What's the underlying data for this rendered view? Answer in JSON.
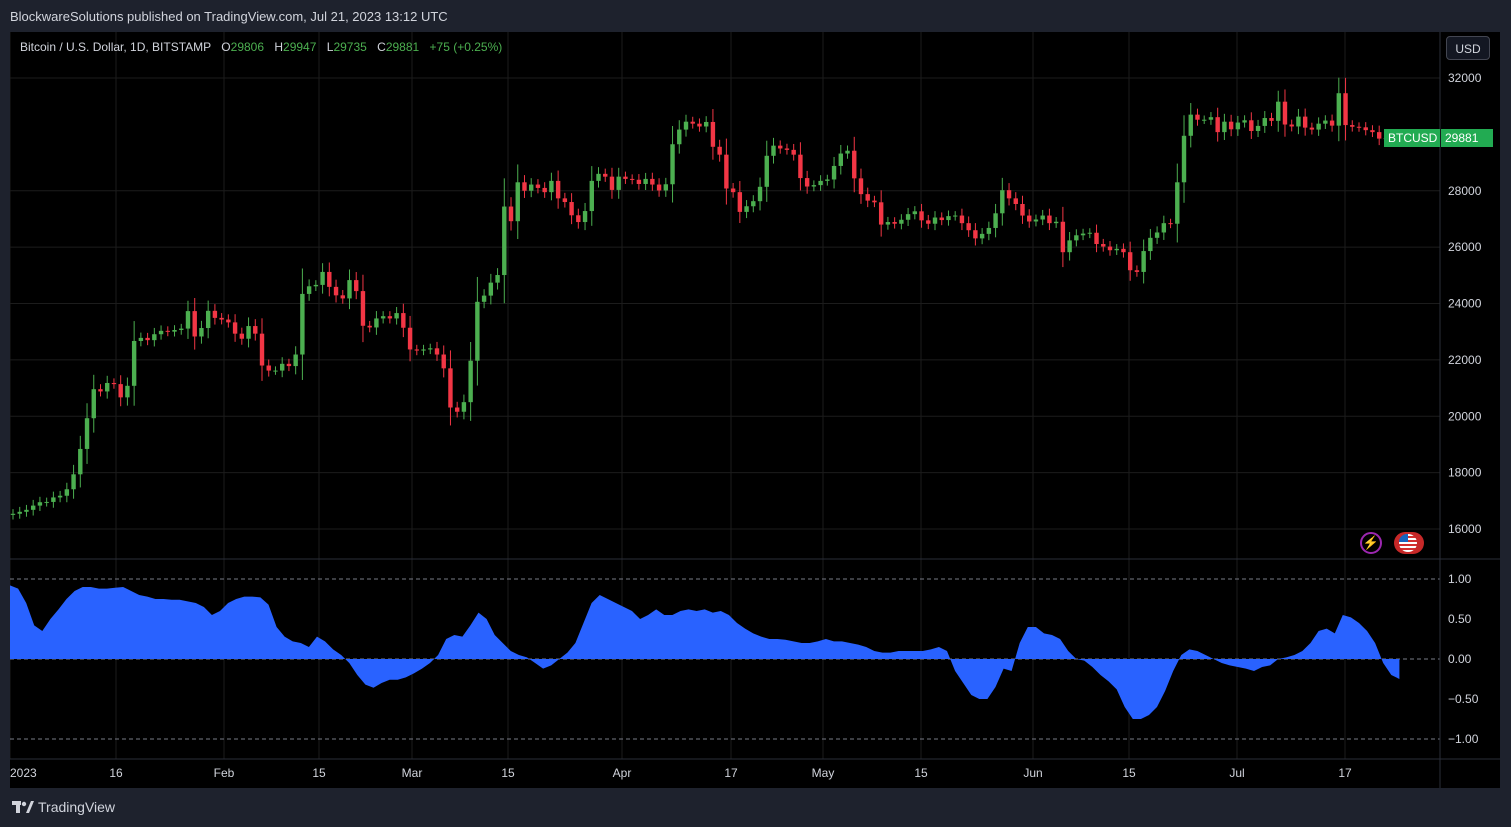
{
  "header": {
    "publisher_line": "BlockwareSolutions published on TradingView.com, Jul 21, 2023 13:12 UTC"
  },
  "legend": {
    "symbol": "Bitcoin / U.S. Dollar, 1D, BITSTAMP",
    "open_label": "O",
    "open": "29806",
    "high_label": "H",
    "high": "29947",
    "low_label": "L",
    "low": "29735",
    "close_label": "C",
    "close": "29881",
    "change": "+75 (+0.25%)"
  },
  "currency_button": "USD",
  "price_tag": {
    "symbol": "BTCUSD",
    "value": "29881"
  },
  "footer": {
    "brand": "TradingView"
  },
  "colors": {
    "up": "#4caf50",
    "down": "#f23645",
    "oscillator": "#2962ff",
    "background": "#000000",
    "frame": "#1e222d"
  },
  "icons": [
    "lightning-icon",
    "us-flag-icon",
    "tradingview-logo-icon"
  ],
  "chart_data": [
    {
      "type": "candlestick",
      "symbol": "BTCUSD",
      "interval": "1D",
      "x_start": "2023-01-01",
      "y_axis_ticks": [
        16000,
        18000,
        20000,
        22000,
        24000,
        26000,
        28000,
        32000
      ],
      "x_axis_ticks": [
        "2023",
        "16",
        "Feb",
        "15",
        "Mar",
        "15",
        "Apr",
        "17",
        "May",
        "15",
        "Jun",
        "15",
        "Jul",
        "17"
      ],
      "closes": [
        16540,
        16610,
        16680,
        16830,
        16950,
        16960,
        17120,
        17180,
        17410,
        17940,
        18840,
        19930,
        20960,
        20880,
        21180,
        21140,
        20670,
        21080,
        22670,
        22780,
        22700,
        22910,
        23030,
        23000,
        23060,
        23110,
        23730,
        22830,
        23130,
        23740,
        23490,
        23430,
        23330,
        22930,
        22750,
        23200,
        22930,
        21800,
        21620,
        21620,
        21860,
        21780,
        22190,
        24340,
        24610,
        24660,
        25120,
        24590,
        24290,
        24180,
        24830,
        24440,
        23210,
        23150,
        23470,
        23550,
        23470,
        23660,
        23140,
        22370,
        22330,
        22370,
        22410,
        22190,
        21700,
        20310,
        20160,
        20500,
        21970,
        24060,
        24280,
        24740,
        25010,
        27440,
        26920,
        28300,
        28000,
        28220,
        28100,
        27950,
        28350,
        27730,
        27600,
        27130,
        26890,
        27280,
        28350,
        28600,
        28500,
        28030,
        28500,
        28420,
        28390,
        28240,
        28420,
        28220,
        28010,
        28230,
        29650,
        30170,
        30450,
        30380,
        30280,
        30440,
        29560,
        29280,
        28080,
        27950,
        27250,
        27450,
        27630,
        28140,
        29240,
        29600,
        29500,
        29450,
        29280,
        28450,
        28150,
        28200,
        28350,
        28400,
        28880,
        29320,
        29420,
        28440,
        27880,
        27650,
        27590,
        26800,
        26890,
        26830,
        26970,
        27170,
        27270,
        26950,
        26830,
        27050,
        26960,
        27100,
        27120,
        26850,
        26600,
        26310,
        26470,
        26680,
        27200,
        28020,
        27730,
        27530,
        27120,
        26910,
        26980,
        27120,
        26850,
        26900,
        25820,
        26240,
        26420,
        26480,
        26510,
        26110,
        26020,
        25890,
        25940,
        25820,
        25180,
        25120,
        25860,
        26330,
        26520,
        26850,
        26830,
        28300,
        29950,
        30700,
        30520,
        30520,
        30610,
        30080,
        30450,
        30180,
        30420,
        30500,
        30120,
        30300,
        30580,
        30480,
        31160,
        30350,
        30280,
        30630,
        30240,
        30170,
        30380,
        30490,
        30310,
        31460,
        30330,
        30270,
        30250,
        30150,
        30080,
        29850,
        29870,
        29810,
        29881
      ]
    },
    {
      "type": "area",
      "name": "oscillator",
      "ylim": [
        -1.0,
        1.0
      ],
      "y_axis_ticks": [
        1.0,
        0.5,
        0.0,
        -0.5,
        -1.0
      ],
      "values": [
        0.92,
        0.88,
        0.7,
        0.42,
        0.35,
        0.5,
        0.62,
        0.75,
        0.85,
        0.9,
        0.9,
        0.88,
        0.88,
        0.89,
        0.9,
        0.85,
        0.8,
        0.78,
        0.75,
        0.75,
        0.74,
        0.74,
        0.72,
        0.7,
        0.65,
        0.55,
        0.6,
        0.7,
        0.75,
        0.78,
        0.78,
        0.77,
        0.68,
        0.4,
        0.28,
        0.22,
        0.2,
        0.15,
        0.28,
        0.22,
        0.12,
        0.05,
        -0.05,
        -0.2,
        -0.32,
        -0.36,
        -0.3,
        -0.26,
        -0.26,
        -0.23,
        -0.18,
        -0.12,
        -0.05,
        0.05,
        0.25,
        0.3,
        0.28,
        0.42,
        0.58,
        0.5,
        0.3,
        0.2,
        0.1,
        0.05,
        0.02,
        -0.05,
        -0.12,
        -0.08,
        0.0,
        0.08,
        0.2,
        0.45,
        0.7,
        0.8,
        0.75,
        0.7,
        0.65,
        0.6,
        0.5,
        0.55,
        0.62,
        0.55,
        0.55,
        0.6,
        0.62,
        0.6,
        0.62,
        0.58,
        0.6,
        0.55,
        0.45,
        0.38,
        0.32,
        0.28,
        0.25,
        0.25,
        0.24,
        0.22,
        0.2,
        0.2,
        0.22,
        0.25,
        0.22,
        0.22,
        0.2,
        0.18,
        0.15,
        0.1,
        0.08,
        0.08,
        0.1,
        0.1,
        0.1,
        0.1,
        0.12,
        0.15,
        0.1,
        -0.15,
        -0.3,
        -0.45,
        -0.5,
        -0.5,
        -0.35,
        -0.12,
        -0.15,
        0.2,
        0.4,
        0.4,
        0.32,
        0.3,
        0.25,
        0.1,
        0.0,
        -0.02,
        -0.1,
        -0.2,
        -0.28,
        -0.38,
        -0.6,
        -0.75,
        -0.75,
        -0.7,
        -0.6,
        -0.4,
        -0.15,
        0.05,
        0.12,
        0.1,
        0.05,
        0.0,
        -0.05,
        -0.08,
        -0.1,
        -0.12,
        -0.15,
        -0.1,
        -0.08,
        0.0,
        0.02,
        0.05,
        0.1,
        0.2,
        0.35,
        0.38,
        0.32,
        0.55,
        0.52,
        0.45,
        0.35,
        0.2,
        -0.05,
        -0.2,
        -0.25
      ]
    }
  ]
}
